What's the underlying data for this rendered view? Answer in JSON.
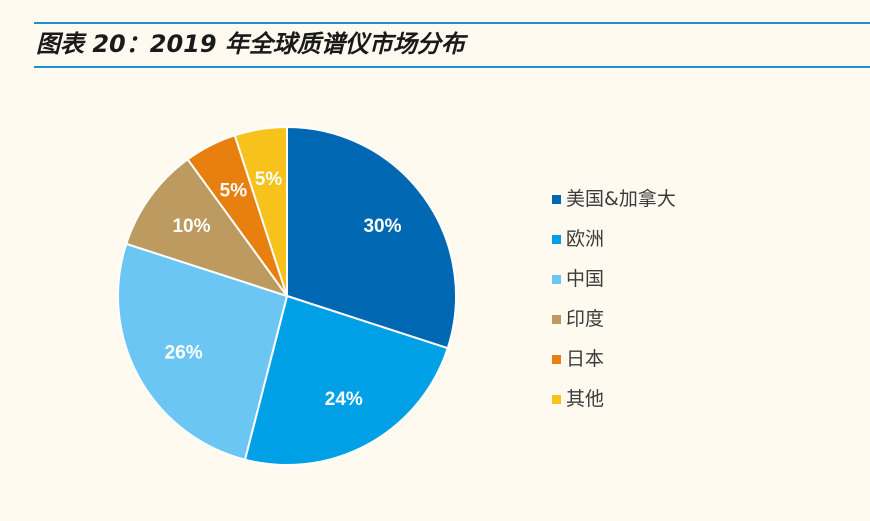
{
  "title": "图表 20：2019 年全球质谱仪市场分布",
  "colors": {
    "rule": "#1f8fd2",
    "background": "#fefaf0"
  },
  "chart_data": {
    "type": "pie",
    "title": "图表 20：2019 年全球质谱仪市场分布",
    "start_angle": "12 o'clock",
    "direction": "clockwise",
    "legend_position": "right",
    "slices": [
      {
        "label": "美国&加拿大",
        "value": 30,
        "display": "30%",
        "color": "#0068b3"
      },
      {
        "label": "欧洲",
        "value": 24,
        "display": "24%",
        "color": "#00a0e6"
      },
      {
        "label": "中国",
        "value": 26,
        "display": "26%",
        "color": "#6cc6f4"
      },
      {
        "label": "印度",
        "value": 10,
        "display": "10%",
        "color": "#bd9a5f"
      },
      {
        "label": "日本",
        "value": 5,
        "display": "5%",
        "color": "#e8800f"
      },
      {
        "label": "其他",
        "value": 5,
        "display": "5%",
        "color": "#f7c21b"
      }
    ]
  }
}
